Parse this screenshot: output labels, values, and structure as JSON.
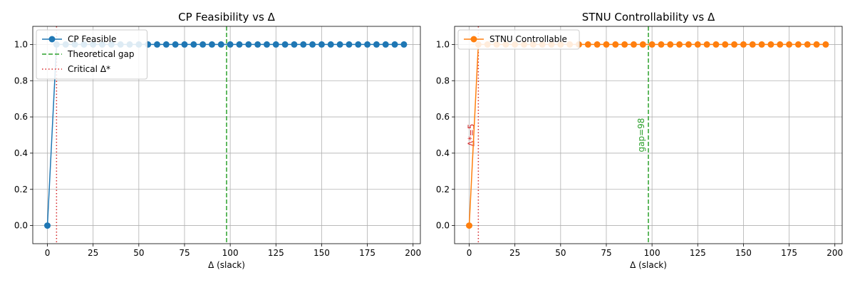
{
  "chart_data": [
    {
      "type": "line",
      "title": "CP Feasibility vs Δ",
      "xlabel": "Δ (slack)",
      "ylabel": "",
      "xlim": [
        -8,
        204
      ],
      "ylim": [
        -0.1,
        1.1
      ],
      "xticks": [
        0,
        25,
        50,
        75,
        100,
        125,
        150,
        175,
        200
      ],
      "yticks": [
        0.0,
        0.2,
        0.4,
        0.6,
        0.8,
        1.0
      ],
      "grid": true,
      "legend_position": "top-left",
      "series": [
        {
          "name": "CP Feasible",
          "color": "#1f77b4",
          "marker": "circle",
          "x": [
            0,
            5,
            10,
            15,
            20,
            25,
            30,
            35,
            40,
            45,
            50,
            55,
            60,
            65,
            70,
            75,
            80,
            85,
            90,
            95,
            100,
            105,
            110,
            115,
            120,
            125,
            130,
            135,
            140,
            145,
            150,
            155,
            160,
            165,
            170,
            175,
            180,
            185,
            190,
            195
          ],
          "y": [
            0,
            1,
            1,
            1,
            1,
            1,
            1,
            1,
            1,
            1,
            1,
            1,
            1,
            1,
            1,
            1,
            1,
            1,
            1,
            1,
            1,
            1,
            1,
            1,
            1,
            1,
            1,
            1,
            1,
            1,
            1,
            1,
            1,
            1,
            1,
            1,
            1,
            1,
            1,
            1
          ]
        }
      ],
      "vlines": [
        {
          "name": "Theoretical gap",
          "x": 98,
          "color": "#2ca02c",
          "style": "dashed",
          "label": ""
        },
        {
          "name": "Critical Δ*",
          "x": 5,
          "color": "#d62728",
          "style": "dotted",
          "label": ""
        }
      ]
    },
    {
      "type": "line",
      "title": "STNU Controllability vs Δ",
      "xlabel": "Δ (slack)",
      "ylabel": "",
      "xlim": [
        -8,
        204
      ],
      "ylim": [
        -0.1,
        1.1
      ],
      "xticks": [
        0,
        25,
        50,
        75,
        100,
        125,
        150,
        175,
        200
      ],
      "yticks": [
        0.0,
        0.2,
        0.4,
        0.6,
        0.8,
        1.0
      ],
      "grid": true,
      "legend_position": "top-left",
      "series": [
        {
          "name": "STNU Controllable",
          "color": "#ff7f0e",
          "marker": "circle",
          "x": [
            0,
            5,
            10,
            15,
            20,
            25,
            30,
            35,
            40,
            45,
            50,
            55,
            60,
            65,
            70,
            75,
            80,
            85,
            90,
            95,
            100,
            105,
            110,
            115,
            120,
            125,
            130,
            135,
            140,
            145,
            150,
            155,
            160,
            165,
            170,
            175,
            180,
            185,
            190,
            195
          ],
          "y": [
            0,
            1,
            1,
            1,
            1,
            1,
            1,
            1,
            1,
            1,
            1,
            1,
            1,
            1,
            1,
            1,
            1,
            1,
            1,
            1,
            1,
            1,
            1,
            1,
            1,
            1,
            1,
            1,
            1,
            1,
            1,
            1,
            1,
            1,
            1,
            1,
            1,
            1,
            1,
            1
          ]
        }
      ],
      "vlines": [
        {
          "name": "",
          "x": 98,
          "color": "#2ca02c",
          "style": "dashed",
          "label": "gap=98"
        },
        {
          "name": "",
          "x": 5,
          "color": "#d62728",
          "style": "dotted",
          "label": "Δ*=5"
        }
      ]
    }
  ]
}
